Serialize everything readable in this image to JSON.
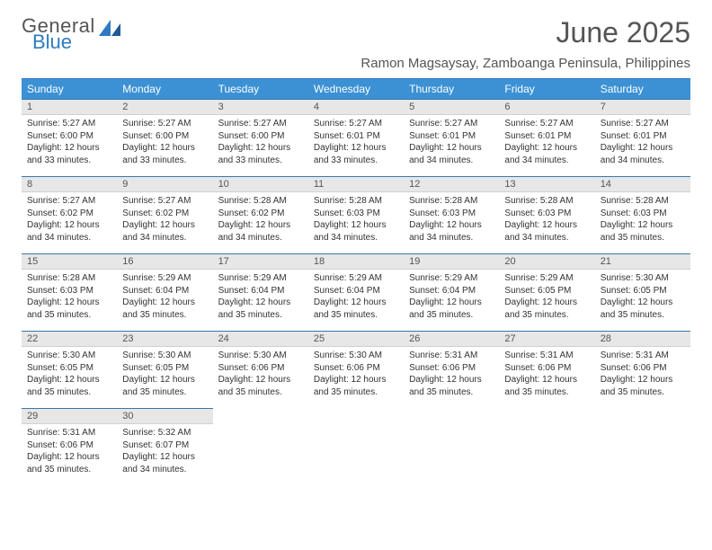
{
  "logo": {
    "line1": "General",
    "line2": "Blue"
  },
  "title": "June 2025",
  "subtitle": "Ramon Magsaysay, Zamboanga Peninsula, Philippines",
  "headers": [
    "Sunday",
    "Monday",
    "Tuesday",
    "Wednesday",
    "Thursday",
    "Friday",
    "Saturday"
  ],
  "colors": {
    "header_bg": "#3b91d4",
    "header_text": "#ffffff",
    "daynum_bg": "#e7e7e7",
    "border_accent": "#3b78a8",
    "logo_blue": "#2f7ac0",
    "text": "#333333"
  },
  "weeks": [
    [
      {
        "n": "1",
        "sr": "Sunrise: 5:27 AM",
        "ss": "Sunset: 6:00 PM",
        "d1": "Daylight: 12 hours",
        "d2": "and 33 minutes."
      },
      {
        "n": "2",
        "sr": "Sunrise: 5:27 AM",
        "ss": "Sunset: 6:00 PM",
        "d1": "Daylight: 12 hours",
        "d2": "and 33 minutes."
      },
      {
        "n": "3",
        "sr": "Sunrise: 5:27 AM",
        "ss": "Sunset: 6:00 PM",
        "d1": "Daylight: 12 hours",
        "d2": "and 33 minutes."
      },
      {
        "n": "4",
        "sr": "Sunrise: 5:27 AM",
        "ss": "Sunset: 6:01 PM",
        "d1": "Daylight: 12 hours",
        "d2": "and 33 minutes."
      },
      {
        "n": "5",
        "sr": "Sunrise: 5:27 AM",
        "ss": "Sunset: 6:01 PM",
        "d1": "Daylight: 12 hours",
        "d2": "and 34 minutes."
      },
      {
        "n": "6",
        "sr": "Sunrise: 5:27 AM",
        "ss": "Sunset: 6:01 PM",
        "d1": "Daylight: 12 hours",
        "d2": "and 34 minutes."
      },
      {
        "n": "7",
        "sr": "Sunrise: 5:27 AM",
        "ss": "Sunset: 6:01 PM",
        "d1": "Daylight: 12 hours",
        "d2": "and 34 minutes."
      }
    ],
    [
      {
        "n": "8",
        "sr": "Sunrise: 5:27 AM",
        "ss": "Sunset: 6:02 PM",
        "d1": "Daylight: 12 hours",
        "d2": "and 34 minutes."
      },
      {
        "n": "9",
        "sr": "Sunrise: 5:27 AM",
        "ss": "Sunset: 6:02 PM",
        "d1": "Daylight: 12 hours",
        "d2": "and 34 minutes."
      },
      {
        "n": "10",
        "sr": "Sunrise: 5:28 AM",
        "ss": "Sunset: 6:02 PM",
        "d1": "Daylight: 12 hours",
        "d2": "and 34 minutes."
      },
      {
        "n": "11",
        "sr": "Sunrise: 5:28 AM",
        "ss": "Sunset: 6:03 PM",
        "d1": "Daylight: 12 hours",
        "d2": "and 34 minutes."
      },
      {
        "n": "12",
        "sr": "Sunrise: 5:28 AM",
        "ss": "Sunset: 6:03 PM",
        "d1": "Daylight: 12 hours",
        "d2": "and 34 minutes."
      },
      {
        "n": "13",
        "sr": "Sunrise: 5:28 AM",
        "ss": "Sunset: 6:03 PM",
        "d1": "Daylight: 12 hours",
        "d2": "and 34 minutes."
      },
      {
        "n": "14",
        "sr": "Sunrise: 5:28 AM",
        "ss": "Sunset: 6:03 PM",
        "d1": "Daylight: 12 hours",
        "d2": "and 35 minutes."
      }
    ],
    [
      {
        "n": "15",
        "sr": "Sunrise: 5:28 AM",
        "ss": "Sunset: 6:03 PM",
        "d1": "Daylight: 12 hours",
        "d2": "and 35 minutes."
      },
      {
        "n": "16",
        "sr": "Sunrise: 5:29 AM",
        "ss": "Sunset: 6:04 PM",
        "d1": "Daylight: 12 hours",
        "d2": "and 35 minutes."
      },
      {
        "n": "17",
        "sr": "Sunrise: 5:29 AM",
        "ss": "Sunset: 6:04 PM",
        "d1": "Daylight: 12 hours",
        "d2": "and 35 minutes."
      },
      {
        "n": "18",
        "sr": "Sunrise: 5:29 AM",
        "ss": "Sunset: 6:04 PM",
        "d1": "Daylight: 12 hours",
        "d2": "and 35 minutes."
      },
      {
        "n": "19",
        "sr": "Sunrise: 5:29 AM",
        "ss": "Sunset: 6:04 PM",
        "d1": "Daylight: 12 hours",
        "d2": "and 35 minutes."
      },
      {
        "n": "20",
        "sr": "Sunrise: 5:29 AM",
        "ss": "Sunset: 6:05 PM",
        "d1": "Daylight: 12 hours",
        "d2": "and 35 minutes."
      },
      {
        "n": "21",
        "sr": "Sunrise: 5:30 AM",
        "ss": "Sunset: 6:05 PM",
        "d1": "Daylight: 12 hours",
        "d2": "and 35 minutes."
      }
    ],
    [
      {
        "n": "22",
        "sr": "Sunrise: 5:30 AM",
        "ss": "Sunset: 6:05 PM",
        "d1": "Daylight: 12 hours",
        "d2": "and 35 minutes."
      },
      {
        "n": "23",
        "sr": "Sunrise: 5:30 AM",
        "ss": "Sunset: 6:05 PM",
        "d1": "Daylight: 12 hours",
        "d2": "and 35 minutes."
      },
      {
        "n": "24",
        "sr": "Sunrise: 5:30 AM",
        "ss": "Sunset: 6:06 PM",
        "d1": "Daylight: 12 hours",
        "d2": "and 35 minutes."
      },
      {
        "n": "25",
        "sr": "Sunrise: 5:30 AM",
        "ss": "Sunset: 6:06 PM",
        "d1": "Daylight: 12 hours",
        "d2": "and 35 minutes."
      },
      {
        "n": "26",
        "sr": "Sunrise: 5:31 AM",
        "ss": "Sunset: 6:06 PM",
        "d1": "Daylight: 12 hours",
        "d2": "and 35 minutes."
      },
      {
        "n": "27",
        "sr": "Sunrise: 5:31 AM",
        "ss": "Sunset: 6:06 PM",
        "d1": "Daylight: 12 hours",
        "d2": "and 35 minutes."
      },
      {
        "n": "28",
        "sr": "Sunrise: 5:31 AM",
        "ss": "Sunset: 6:06 PM",
        "d1": "Daylight: 12 hours",
        "d2": "and 35 minutes."
      }
    ],
    [
      {
        "n": "29",
        "sr": "Sunrise: 5:31 AM",
        "ss": "Sunset: 6:06 PM",
        "d1": "Daylight: 12 hours",
        "d2": "and 35 minutes."
      },
      {
        "n": "30",
        "sr": "Sunrise: 5:32 AM",
        "ss": "Sunset: 6:07 PM",
        "d1": "Daylight: 12 hours",
        "d2": "and 34 minutes."
      },
      null,
      null,
      null,
      null,
      null
    ]
  ]
}
